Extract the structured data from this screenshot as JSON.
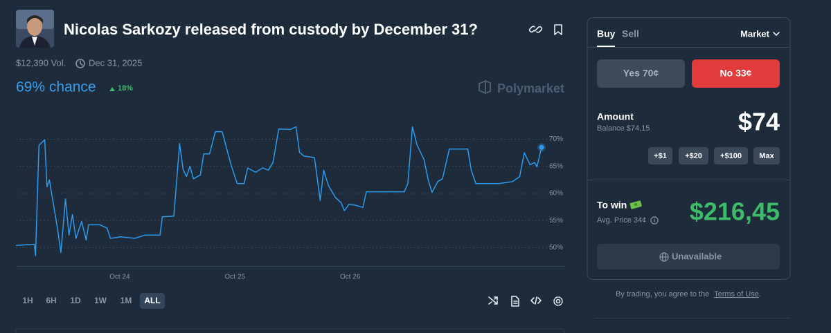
{
  "header": {
    "title": "Nicolas Sarkozy released from custody by December 31?",
    "volume": "$12,390 Vol.",
    "end_date": "Dec 31, 2025"
  },
  "chance": {
    "label": "69% chance",
    "change": "18%"
  },
  "brand": "Polymarket",
  "chart_data": {
    "type": "line",
    "color": "#2f9bec",
    "grid": true,
    "x": [
      23.1,
      23.26,
      23.27,
      23.3,
      23.35,
      23.37,
      23.39,
      23.43,
      23.46,
      23.49,
      23.53,
      23.56,
      23.59,
      23.62,
      23.67,
      23.71,
      23.73,
      23.83,
      23.89,
      23.92,
      24.01,
      24.13,
      24.22,
      24.35,
      24.37,
      24.47,
      24.52,
      24.55,
      24.58,
      24.61,
      24.64,
      24.7,
      24.73,
      24.78,
      24.83,
      24.89,
      24.94,
      24.97,
      25.02,
      25.08,
      25.11,
      25.18,
      25.24,
      25.29,
      25.33,
      25.38,
      25.48,
      25.53,
      25.56,
      25.6,
      25.69,
      25.74,
      25.77,
      25.81,
      25.87,
      25.92,
      25.95,
      25.99,
      26.05,
      26.11,
      26.14,
      26.47,
      26.5,
      26.54,
      26.58,
      26.64,
      26.68,
      26.71,
      26.76,
      26.8,
      26.86,
      27.02,
      27.05,
      27.09,
      27.29,
      27.41,
      27.47,
      27.51,
      27.56,
      27.6,
      27.62,
      27.66
    ],
    "values": [
      50.4,
      50.6,
      48.5,
      68.9,
      69.9,
      61.2,
      62.5,
      57.4,
      53.6,
      49.1,
      59.0,
      52.3,
      56.1,
      51.7,
      54.8,
      51.4,
      54.2,
      54.2,
      53.6,
      51.7,
      52.0,
      51.7,
      52.3,
      52.3,
      55.7,
      55.8,
      69.2,
      64.4,
      63.1,
      65.0,
      62.7,
      63.4,
      67.3,
      67.3,
      71.4,
      71.4,
      67.3,
      65.0,
      61.8,
      61.8,
      64.7,
      63.9,
      64.7,
      64.3,
      65.7,
      71.9,
      71.8,
      72.3,
      67.6,
      66.9,
      66.6,
      58.7,
      64.3,
      61.5,
      59.3,
      58.3,
      56.8,
      58.0,
      57.8,
      57.4,
      60.3,
      60.3,
      61.8,
      72.3,
      68.9,
      66.3,
      62.2,
      60.2,
      62.2,
      62.7,
      68.2,
      68.2,
      64.3,
      61.8,
      61.8,
      62.2,
      63.1,
      67.5,
      65.3,
      65.7,
      64.9,
      68.5
    ],
    "xlim": [
      23.1,
      27.75
    ],
    "ylim": [
      46.6,
      75.3
    ],
    "xticks": [
      {
        "value": 24,
        "label": "Oct 24"
      },
      {
        "value": 25,
        "label": "Oct 25"
      },
      {
        "value": 26,
        "label": "Oct 26"
      }
    ],
    "yticks": [
      {
        "value": 50,
        "label": "50%"
      },
      {
        "value": 55,
        "label": "55%"
      },
      {
        "value": 60,
        "label": "60%"
      },
      {
        "value": 65,
        "label": "65%"
      },
      {
        "value": 70,
        "label": "70%"
      }
    ]
  },
  "time_ranges": [
    "1H",
    "6H",
    "1D",
    "1W",
    "1M",
    "ALL"
  ],
  "trade": {
    "tabs": [
      "Buy",
      "Sell"
    ],
    "order_type": "Market",
    "yes": "Yes 70¢",
    "no": "No 33¢",
    "amount_label": "Amount",
    "balance": "Balance $74,15",
    "amount": "$74",
    "quick_add": [
      "+$1",
      "+$20",
      "+$100",
      "Max"
    ],
    "to_win_label": "To win",
    "avg_price": "Avg. Price 34¢",
    "to_win": "$216,45",
    "status": "Unavailable",
    "terms": {
      "prefix": "By trading, you agree to the",
      "link": "Terms of Use",
      "suffix": "."
    }
  }
}
